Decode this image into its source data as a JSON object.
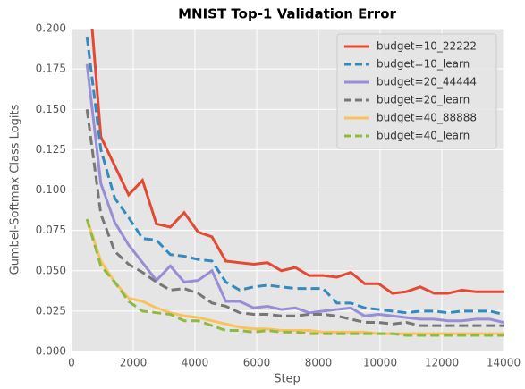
{
  "chart_data": {
    "type": "line",
    "title": "MNIST Top-1 Validation Error",
    "xlabel": "Step",
    "ylabel": "Gumbel-Softmax Class Logits",
    "x": [
      500,
      950,
      1400,
      1850,
      2300,
      2750,
      3200,
      3650,
      4100,
      4550,
      5000,
      5450,
      5900,
      6350,
      6800,
      7250,
      7700,
      8150,
      8600,
      9050,
      9500,
      9950,
      10400,
      10850,
      11300,
      11750,
      12200,
      12650,
      13100,
      13550,
      14000
    ],
    "series": [
      {
        "name": "budget=10_22222",
        "color": "#e24a33",
        "linestyle": "solid",
        "values": [
          0.24,
          0.133,
          0.115,
          0.097,
          0.106,
          0.079,
          0.077,
          0.086,
          0.074,
          0.071,
          0.056,
          0.055,
          0.054,
          0.055,
          0.05,
          0.052,
          0.047,
          0.047,
          0.046,
          0.049,
          0.042,
          0.042,
          0.036,
          0.037,
          0.04,
          0.036,
          0.036,
          0.038,
          0.037,
          0.037,
          0.037
        ]
      },
      {
        "name": "budget=10_learn",
        "color": "#348abd",
        "linestyle": "dashed",
        "values": [
          0.195,
          0.125,
          0.095,
          0.083,
          0.07,
          0.069,
          0.06,
          0.059,
          0.057,
          0.056,
          0.043,
          0.038,
          0.04,
          0.041,
          0.04,
          0.039,
          0.039,
          0.039,
          0.03,
          0.03,
          0.027,
          0.026,
          0.025,
          0.024,
          0.025,
          0.025,
          0.024,
          0.025,
          0.025,
          0.025,
          0.023
        ]
      },
      {
        "name": "budget=20_44444",
        "color": "#988ed5",
        "linestyle": "solid",
        "values": [
          0.178,
          0.104,
          0.08,
          0.066,
          0.055,
          0.044,
          0.053,
          0.043,
          0.044,
          0.05,
          0.031,
          0.031,
          0.027,
          0.028,
          0.026,
          0.027,
          0.024,
          0.025,
          0.026,
          0.027,
          0.022,
          0.023,
          0.022,
          0.021,
          0.02,
          0.02,
          0.019,
          0.019,
          0.02,
          0.02,
          0.018
        ]
      },
      {
        "name": "budget=20_learn",
        "color": "#777777",
        "linestyle": "dashed",
        "values": [
          0.15,
          0.085,
          0.062,
          0.054,
          0.049,
          0.043,
          0.038,
          0.039,
          0.036,
          0.03,
          0.028,
          0.024,
          0.023,
          0.023,
          0.022,
          0.022,
          0.023,
          0.023,
          0.022,
          0.02,
          0.018,
          0.018,
          0.017,
          0.018,
          0.016,
          0.016,
          0.016,
          0.016,
          0.016,
          0.016,
          0.016
        ]
      },
      {
        "name": "budget=40_88888",
        "color": "#fbc15e",
        "linestyle": "solid",
        "values": [
          0.082,
          0.056,
          0.043,
          0.033,
          0.031,
          0.027,
          0.024,
          0.022,
          0.021,
          0.019,
          0.017,
          0.015,
          0.014,
          0.014,
          0.013,
          0.013,
          0.013,
          0.012,
          0.012,
          0.012,
          0.012,
          0.011,
          0.011,
          0.011,
          0.011,
          0.011,
          0.011,
          0.011,
          0.011,
          0.011,
          0.011
        ]
      },
      {
        "name": "budget=40_learn",
        "color": "#8eba42",
        "linestyle": "dashed",
        "values": [
          0.082,
          0.053,
          0.043,
          0.031,
          0.025,
          0.024,
          0.023,
          0.019,
          0.019,
          0.016,
          0.013,
          0.013,
          0.012,
          0.013,
          0.012,
          0.012,
          0.011,
          0.011,
          0.011,
          0.011,
          0.011,
          0.011,
          0.011,
          0.01,
          0.01,
          0.01,
          0.01,
          0.01,
          0.01,
          0.01,
          0.01
        ]
      }
    ],
    "xlim": [
      0,
      14000
    ],
    "xticks": [
      0,
      2000,
      4000,
      6000,
      8000,
      10000,
      12000,
      14000
    ],
    "ylim": [
      0,
      0.2
    ],
    "yticks": [
      {
        "value": 0,
        "label": "0.000"
      },
      {
        "value": 0.025,
        "label": "0.025"
      },
      {
        "value": 0.05,
        "label": "0.050"
      },
      {
        "value": 0.075,
        "label": "0.075"
      },
      {
        "value": 0.1,
        "label": "0.100"
      },
      {
        "value": 0.125,
        "label": "0.125"
      },
      {
        "value": 0.15,
        "label": "0.150"
      },
      {
        "value": 0.175,
        "label": "0.175"
      },
      {
        "value": 0.2,
        "label": "0.200"
      }
    ],
    "grid": true,
    "legend": "upper right"
  }
}
